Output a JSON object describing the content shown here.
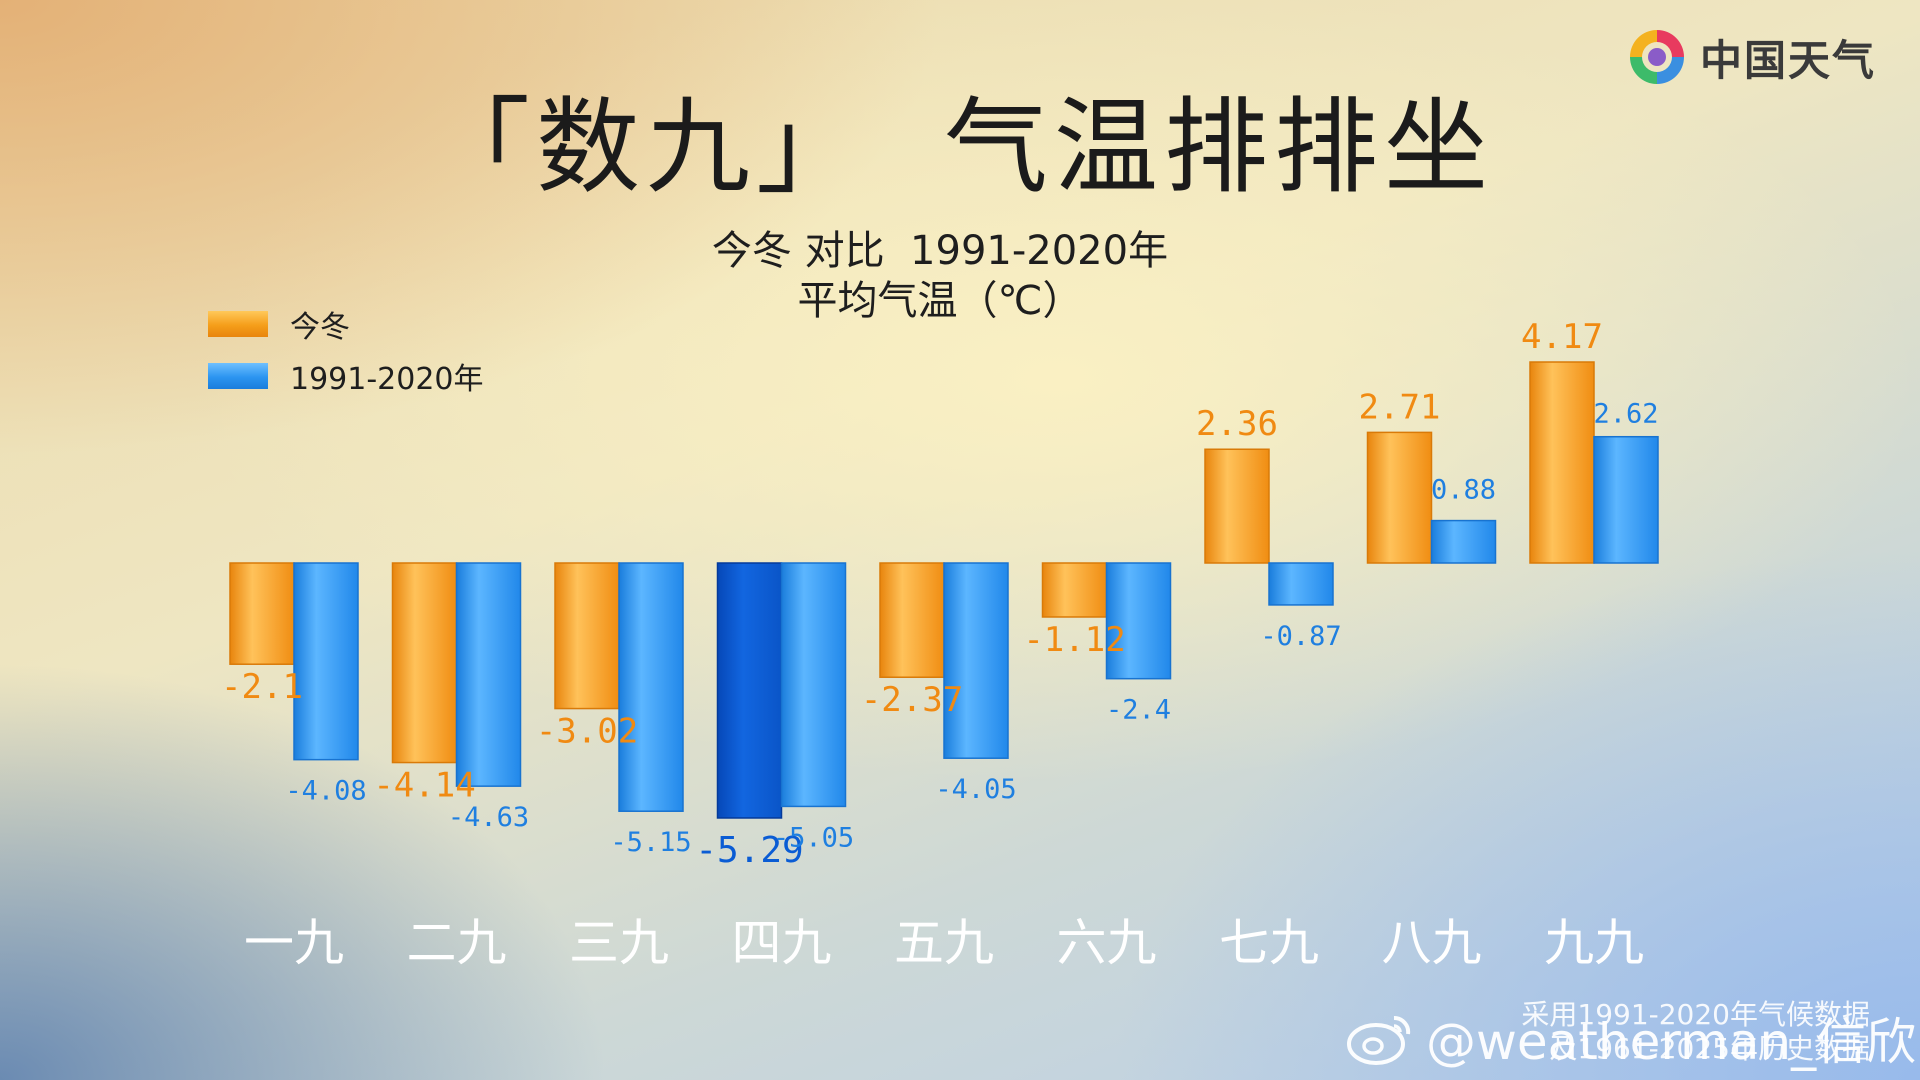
{
  "header": {
    "title": "「数九」  气温排排坐",
    "subtitle_line1": "今冬 对比  1991-2020年",
    "subtitle_line2": "平均气温（℃）"
  },
  "brand": {
    "name": "中国天气",
    "icon": "swirl-logo-icon"
  },
  "footer": {
    "note_line1": "采用1991-2020年气候数据",
    "note_line2": "及1961-2025年历史数据",
    "watermark": "@weatherman_信欣",
    "watermark_icon": "weibo-icon"
  },
  "colors": {
    "orange": "#f59e1a",
    "blue": "#2b94f0",
    "highlight_blue": "#0a5cd4",
    "orange_label": "#f08a12",
    "blue_label": "#1f7fe0"
  },
  "chart_data": {
    "type": "bar",
    "categories": [
      "一九",
      "二九",
      "三九",
      "四九",
      "五九",
      "六九",
      "七九",
      "八九",
      "九九"
    ],
    "series": [
      {
        "name": "今冬",
        "values": [
          -2.1,
          -4.14,
          -3.02,
          -5.29,
          -2.37,
          -1.12,
          2.36,
          2.71,
          4.17
        ],
        "labels": [
          "-2.1",
          "-4.14",
          "-3.02",
          "-5.29",
          "-2.37",
          "-1.12",
          "2.36",
          "2.71",
          "4.17"
        ]
      },
      {
        "name": "1991-2020年",
        "values": [
          -4.08,
          -4.63,
          -5.15,
          -5.05,
          -4.05,
          -2.4,
          -0.87,
          0.88,
          2.62
        ],
        "labels": [
          "-4.08",
          "-4.63",
          "-5.15",
          "-5.05",
          "-4.05",
          "-2.4",
          "-0.87",
          "0.88",
          "2.62"
        ]
      }
    ],
    "highlight": {
      "series": "今冬",
      "category": "四九"
    },
    "grid": false,
    "legend_position": "top-left"
  }
}
